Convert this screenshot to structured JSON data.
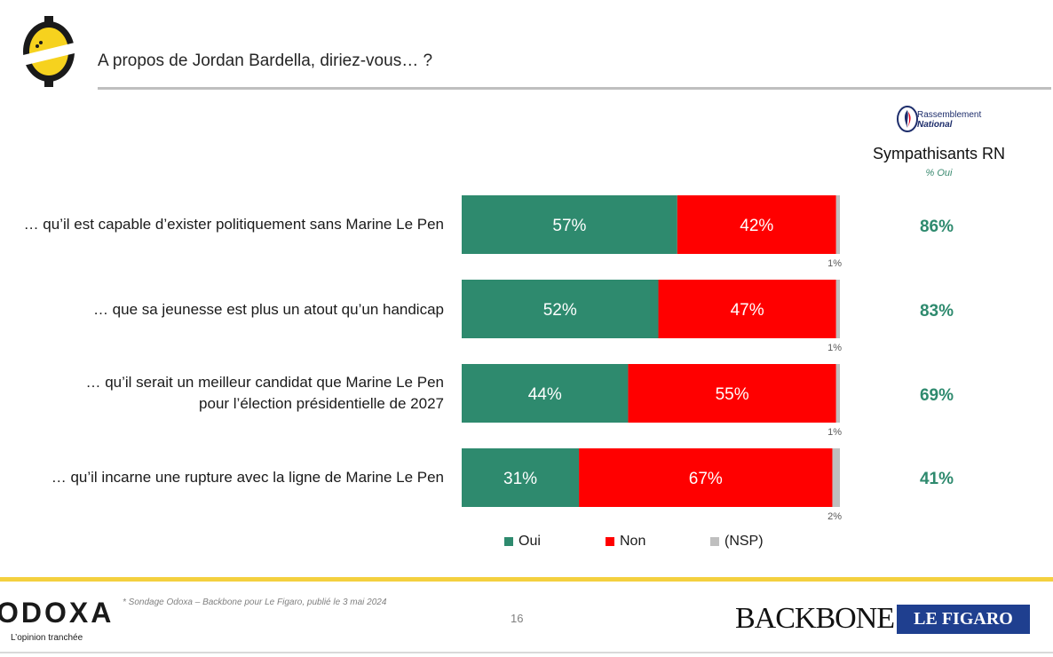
{
  "header": {
    "title": "A propos de Jordan Bardella, diriez-vous… ?"
  },
  "rn_column": {
    "logo_line1": "Rassemblement",
    "logo_line2": "National",
    "title": "Sympathisants RN",
    "subtitle": "% Oui"
  },
  "colors": {
    "oui": "#2e8a6e",
    "non": "#ff0000",
    "nsp": "#bfbfbf",
    "accent_yellow": "#f4d03f"
  },
  "chart_data": {
    "type": "bar",
    "orientation": "horizontal-stacked-100",
    "title": "A propos de Jordan Bardella, diriez-vous… ?",
    "categories": [
      "… qu’il est capable d’exister politiquement sans Marine Le Pen",
      "… que sa jeunesse est plus un atout qu’un handicap",
      "… qu’il serait un meilleur candidat que Marine Le Pen pour l’élection présidentielle de 2027",
      "… qu’il incarne une rupture avec la ligne de Marine Le Pen"
    ],
    "category_lines": [
      [
        "… qu’il est capable d’exister politiquement sans Marine Le Pen"
      ],
      [
        "… que sa jeunesse est plus un atout qu’un handicap"
      ],
      [
        "… qu’il serait un meilleur candidat que Marine Le Pen",
        "pour l’élection présidentielle de 2027"
      ],
      [
        "… qu’il incarne une rupture avec la ligne de Marine Le Pen"
      ]
    ],
    "series": [
      {
        "name": "Oui",
        "values": [
          57,
          52,
          44,
          31
        ],
        "labels": [
          "57%",
          "52%",
          "44%",
          "31%"
        ]
      },
      {
        "name": "Non",
        "values": [
          42,
          47,
          55,
          67
        ],
        "labels": [
          "42%",
          "47%",
          "55%",
          "67%"
        ]
      },
      {
        "name": "(NSP)",
        "values": [
          1,
          1,
          1,
          2
        ],
        "labels": [
          "1%",
          "1%",
          "1%",
          "2%"
        ]
      }
    ],
    "rn_oui": [
      "86%",
      "83%",
      "69%",
      "41%"
    ],
    "xlim": [
      0,
      100
    ],
    "legend": "bottom"
  },
  "footer": {
    "brand": "ODOXA",
    "tagline": "L’opinion tranchée",
    "source": "* Sondage Odoxa – Backbone pour Le Figaro, publié le 3 mai 2024",
    "page": "16",
    "partner1": "BACKBONE",
    "partner2": "LE FIGARO"
  }
}
